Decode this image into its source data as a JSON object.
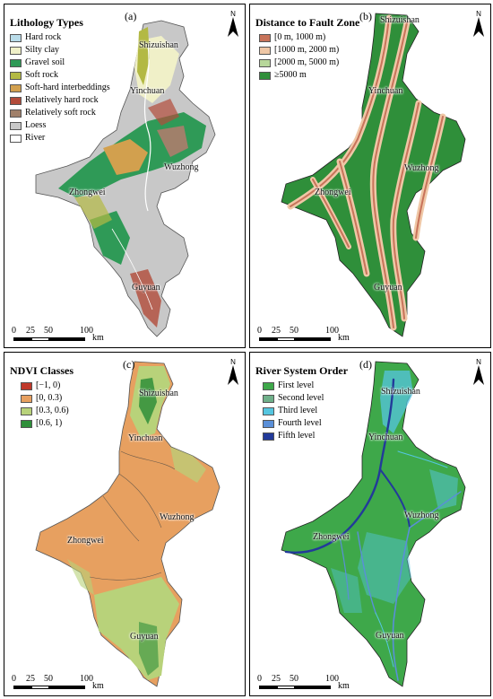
{
  "panels": [
    {
      "id": "a",
      "label": "(a)",
      "title": "Lithology Types",
      "north": "N",
      "legend": [
        {
          "label": "Hard rock",
          "color": "#b9dce9"
        },
        {
          "label": "Silty clay",
          "color": "#f0f0c8"
        },
        {
          "label": "Gravel soil",
          "color": "#2f9a57"
        },
        {
          "label": "Soft rock",
          "color": "#b3b944"
        },
        {
          "label": "Soft-hard interbeddings",
          "color": "#d2a04e"
        },
        {
          "label": "Relatively hard rock",
          "color": "#b24b3a"
        },
        {
          "label": "Relatively soft rock",
          "color": "#a0806a"
        },
        {
          "label": "Loess",
          "color": "#c8c8c8"
        },
        {
          "label": "River",
          "color": "#ffffff"
        }
      ],
      "cities": [
        "Shizuishan",
        "Yinchuan",
        "Wuzhong",
        "Zhongwei",
        "Guyuan"
      ],
      "scale": {
        "ticks": [
          "0",
          "25",
          "50",
          "100"
        ],
        "unit": "km"
      }
    },
    {
      "id": "b",
      "label": "(b)",
      "title": "Distance to Fault Zone",
      "north": "N",
      "legend": [
        {
          "label": "[0 m, 1000 m)",
          "color": "#c8735a"
        },
        {
          "label": "[1000 m, 2000 m)",
          "color": "#efc7a6"
        },
        {
          "label": "[2000 m, 5000 m)",
          "color": "#b7d79a"
        },
        {
          "label": "≥5000 m",
          "color": "#2f8f3a"
        }
      ],
      "cities": [
        "Shizuishan",
        "Yinchuan",
        "Wuzhong",
        "Zhongwei",
        "Guyuan"
      ],
      "scale": {
        "ticks": [
          "0",
          "25",
          "50",
          "100"
        ],
        "unit": "km"
      }
    },
    {
      "id": "c",
      "label": "(c)",
      "title": "NDVI Classes",
      "north": "N",
      "legend": [
        {
          "label": "[−1, 0)",
          "color": "#c0392b"
        },
        {
          "label": "[0, 0.3)",
          "color": "#e7a060"
        },
        {
          "label": "[0.3, 0.6)",
          "color": "#b8d27a"
        },
        {
          "label": "[0.6, 1)",
          "color": "#2f8f3a"
        }
      ],
      "cities": [
        "Shizuishan",
        "Yinchuan",
        "Wuzhong",
        "Zhongwei",
        "Guyuan"
      ],
      "scale": {
        "ticks": [
          "0",
          "25",
          "50",
          "100"
        ],
        "unit": "km"
      }
    },
    {
      "id": "d",
      "label": "(d)",
      "title": "River System Order",
      "north": "N",
      "legend": [
        {
          "label": "First level",
          "color": "#3ea84a"
        },
        {
          "label": "Second level",
          "color": "#6fb08a"
        },
        {
          "label": "Third level",
          "color": "#55c6e0"
        },
        {
          "label": "Fourth level",
          "color": "#5a8fd8"
        },
        {
          "label": "Fifth level",
          "color": "#223a9a"
        }
      ],
      "cities": [
        "Shizuishan",
        "Yinchuan",
        "Wuzhong",
        "Zhongwei",
        "Guyuan"
      ],
      "scale": {
        "ticks": [
          "0",
          "25",
          "50",
          "100"
        ],
        "unit": "km"
      }
    }
  ]
}
